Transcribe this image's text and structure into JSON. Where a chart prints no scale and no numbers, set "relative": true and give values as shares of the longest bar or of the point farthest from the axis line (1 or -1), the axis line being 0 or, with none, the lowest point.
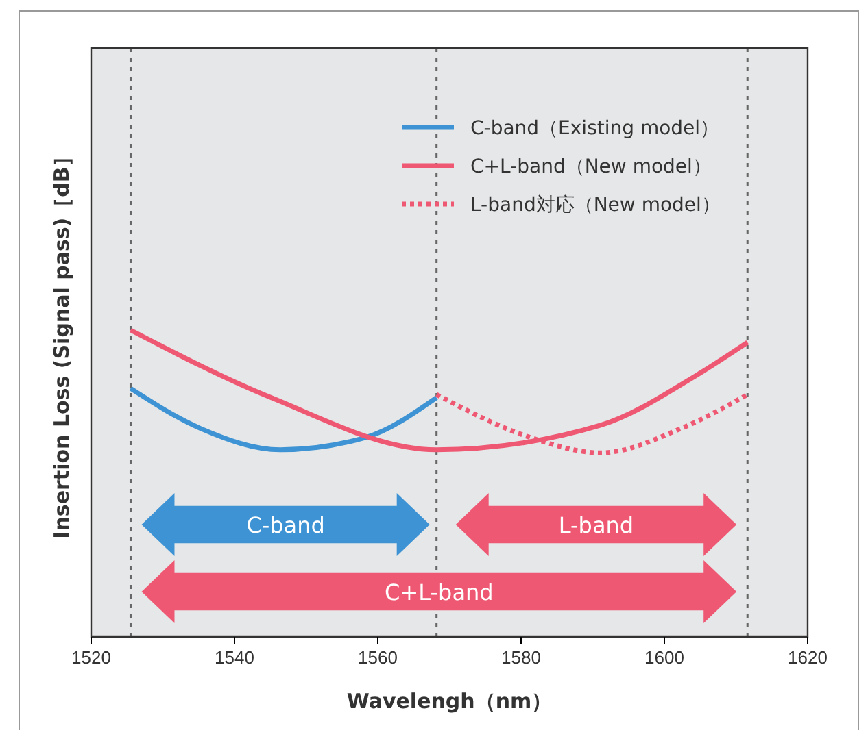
{
  "chart_data": {
    "type": "line",
    "relative": true,
    "xlabel": "Wavelengh（nm）",
    "ylabel": "Insertion Loss (Signal pass)［dB］",
    "xlim": [
      1520,
      1620
    ],
    "xticks": [
      1520,
      1540,
      1560,
      1580,
      1600,
      1620
    ],
    "legend": "top right",
    "line_style": "solid",
    "series": [
      {
        "name": "C-band（Existing model）",
        "color": "#3d93d3",
        "x": [
          1525.5,
          1535.2,
          1546.4,
          1558.3,
          1568.2
        ],
        "values": [
          0.81,
          0.68,
          0.61,
          0.65,
          0.78
        ]
      },
      {
        "name": "C+L-band（New model）",
        "color": "#ef5873",
        "x": [
          1525.5,
          1545.1,
          1568.2,
          1591.1,
          1604.3,
          1611.6
        ],
        "values": [
          1.0,
          0.78,
          0.61,
          0.69,
          0.85,
          0.96
        ]
      },
      {
        "name": "L-band対応（New model）",
        "color": "#ef5873",
        "line_style": "dotted",
        "x": [
          1568.2,
          1581.3,
          1591.1,
          1602.4,
          1611.6
        ],
        "values": [
          0.79,
          0.65,
          0.6,
          0.68,
          0.79
        ]
      }
    ],
    "ref_lines": [
      {
        "axis": "x",
        "value": 1525.5,
        "color": "#666666",
        "line_style": "dashed"
      },
      {
        "axis": "x",
        "value": 1568.2,
        "color": "#666666",
        "line_style": "dashed"
      },
      {
        "axis": "x",
        "value": 1611.6,
        "color": "#666666",
        "line_style": "dashed"
      }
    ],
    "annotations": [
      "C-band",
      "L-band",
      "C+L-band"
    ]
  }
}
